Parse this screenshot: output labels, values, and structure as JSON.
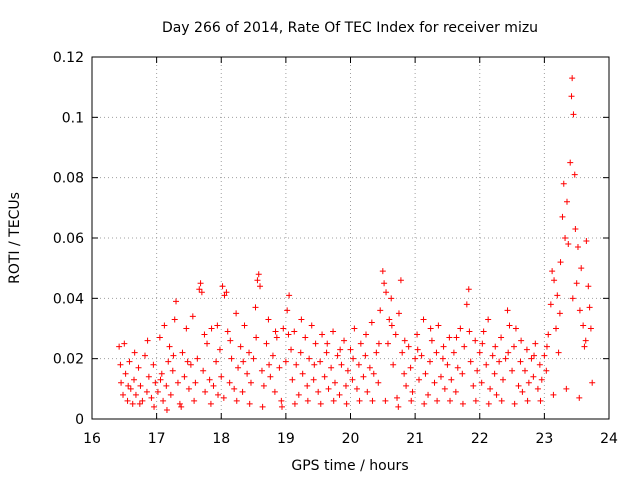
{
  "chart_data": {
    "type": "scatter",
    "title": "Day 266 of 2014, Rate Of TEC Index for receiver mizu",
    "xlabel": "GPS time / hours",
    "ylabel": "ROTI / TECUs",
    "xlim": [
      16,
      24
    ],
    "ylim": [
      0,
      0.12
    ],
    "x_ticks": [
      "16",
      "17",
      "18",
      "19",
      "20",
      "21",
      "22",
      "23",
      "24"
    ],
    "y_ticks": [
      "0",
      "0.02",
      "0.04",
      "0.06",
      "0.08",
      "0.1",
      "0.12"
    ],
    "grid": true,
    "marker": "plus",
    "color": "#ff0000",
    "series": [
      {
        "name": "ROTI",
        "points": [
          [
            16.42,
            0.024
          ],
          [
            16.45,
            0.012
          ],
          [
            16.48,
            0.008
          ],
          [
            16.5,
            0.025
          ],
          [
            16.52,
            0.015
          ],
          [
            16.55,
            0.006
          ],
          [
            16.58,
            0.019
          ],
          [
            16.6,
            0.01
          ],
          [
            16.63,
            0.005
          ],
          [
            16.65,
            0.013
          ],
          [
            16.68,
            0.008
          ],
          [
            16.72,
            0.017
          ],
          [
            16.75,
            0.011
          ],
          [
            16.78,
            0.006
          ],
          [
            16.82,
            0.021
          ],
          [
            16.85,
            0.009
          ],
          [
            16.88,
            0.014
          ],
          [
            16.92,
            0.007
          ],
          [
            16.95,
            0.018
          ],
          [
            16.98,
            0.012
          ],
          [
            17.02,
            0.009
          ],
          [
            17.05,
            0.027
          ],
          [
            17.08,
            0.015
          ],
          [
            17.1,
            0.006
          ],
          [
            17.12,
            0.031
          ],
          [
            17.15,
            0.011
          ],
          [
            17.18,
            0.019
          ],
          [
            17.2,
            0.024
          ],
          [
            17.22,
            0.008
          ],
          [
            17.25,
            0.016
          ],
          [
            17.28,
            0.033
          ],
          [
            17.3,
            0.039
          ],
          [
            17.33,
            0.012
          ],
          [
            17.36,
            0.005
          ],
          [
            17.4,
            0.022
          ],
          [
            17.43,
            0.014
          ],
          [
            17.46,
            0.03
          ],
          [
            17.5,
            0.01
          ],
          [
            17.53,
            0.018
          ],
          [
            17.56,
            0.034
          ],
          [
            17.6,
            0.012
          ],
          [
            17.63,
            0.02
          ],
          [
            17.66,
            0.043
          ],
          [
            17.68,
            0.045
          ],
          [
            17.7,
            0.042
          ],
          [
            17.72,
            0.016
          ],
          [
            17.75,
            0.009
          ],
          [
            17.78,
            0.025
          ],
          [
            17.82,
            0.013
          ],
          [
            17.85,
            0.03
          ],
          [
            17.88,
            0.011
          ],
          [
            17.92,
            0.019
          ],
          [
            17.95,
            0.008
          ],
          [
            17.98,
            0.023
          ],
          [
            18.0,
            0.014
          ],
          [
            18.02,
            0.044
          ],
          [
            18.05,
            0.041
          ],
          [
            18.08,
            0.042
          ],
          [
            18.1,
            0.029
          ],
          [
            18.13,
            0.012
          ],
          [
            18.16,
            0.02
          ],
          [
            18.2,
            0.01
          ],
          [
            18.23,
            0.035
          ],
          [
            18.26,
            0.017
          ],
          [
            18.3,
            0.024
          ],
          [
            18.33,
            0.009
          ],
          [
            18.36,
            0.031
          ],
          [
            18.4,
            0.015
          ],
          [
            18.43,
            0.022
          ],
          [
            18.46,
            0.012
          ],
          [
            18.5,
            0.02
          ],
          [
            18.53,
            0.037
          ],
          [
            18.56,
            0.046
          ],
          [
            18.58,
            0.048
          ],
          [
            18.6,
            0.044
          ],
          [
            18.63,
            0.016
          ],
          [
            18.66,
            0.011
          ],
          [
            18.7,
            0.025
          ],
          [
            18.73,
            0.033
          ],
          [
            18.76,
            0.014
          ],
          [
            18.8,
            0.021
          ],
          [
            18.83,
            0.009
          ],
          [
            18.86,
            0.027
          ],
          [
            18.9,
            0.017
          ],
          [
            18.93,
            0.006
          ],
          [
            18.96,
            0.03
          ],
          [
            19.0,
            0.019
          ],
          [
            19.02,
            0.036
          ],
          [
            19.05,
            0.041
          ],
          [
            19.08,
            0.023
          ],
          [
            19.1,
            0.013
          ],
          [
            19.13,
            0.029
          ],
          [
            19.16,
            0.018
          ],
          [
            19.2,
            0.008
          ],
          [
            19.23,
            0.022
          ],
          [
            19.26,
            0.015
          ],
          [
            19.3,
            0.027
          ],
          [
            19.33,
            0.011
          ],
          [
            19.36,
            0.02
          ],
          [
            19.4,
            0.031
          ],
          [
            19.43,
            0.013
          ],
          [
            19.46,
            0.025
          ],
          [
            19.5,
            0.009
          ],
          [
            19.53,
            0.019
          ],
          [
            19.56,
            0.028
          ],
          [
            19.6,
            0.014
          ],
          [
            19.63,
            0.022
          ],
          [
            19.66,
            0.01
          ],
          [
            19.7,
            0.017
          ],
          [
            19.73,
            0.029
          ],
          [
            19.76,
            0.012
          ],
          [
            19.8,
            0.021
          ],
          [
            19.83,
            0.008
          ],
          [
            19.86,
            0.018
          ],
          [
            19.9,
            0.026
          ],
          [
            19.93,
            0.011
          ],
          [
            19.96,
            0.016
          ],
          [
            20.0,
            0.023
          ],
          [
            20.03,
            0.013
          ],
          [
            20.06,
            0.03
          ],
          [
            20.1,
            0.01
          ],
          [
            20.13,
            0.018
          ],
          [
            20.16,
            0.025
          ],
          [
            20.2,
            0.014
          ],
          [
            20.23,
            0.021
          ],
          [
            20.26,
            0.009
          ],
          [
            20.3,
            0.017
          ],
          [
            20.33,
            0.032
          ],
          [
            20.36,
            0.015
          ],
          [
            20.4,
            0.022
          ],
          [
            20.43,
            0.012
          ],
          [
            20.46,
            0.036
          ],
          [
            20.5,
            0.049
          ],
          [
            20.52,
            0.045
          ],
          [
            20.55,
            0.042
          ],
          [
            20.58,
            0.025
          ],
          [
            20.6,
            0.033
          ],
          [
            20.63,
            0.04
          ],
          [
            20.66,
            0.018
          ],
          [
            20.7,
            0.028
          ],
          [
            20.72,
            0.007
          ],
          [
            20.75,
            0.035
          ],
          [
            20.78,
            0.046
          ],
          [
            20.8,
            0.022
          ],
          [
            20.83,
            0.015
          ],
          [
            20.86,
            0.011
          ],
          [
            20.9,
            0.024
          ],
          [
            20.93,
            0.017
          ],
          [
            20.96,
            0.009
          ],
          [
            21.0,
            0.02
          ],
          [
            21.03,
            0.028
          ],
          [
            21.06,
            0.013
          ],
          [
            21.1,
            0.021
          ],
          [
            21.13,
            0.033
          ],
          [
            21.16,
            0.015
          ],
          [
            21.2,
            0.008
          ],
          [
            21.23,
            0.019
          ],
          [
            21.26,
            0.026
          ],
          [
            21.3,
            0.012
          ],
          [
            21.33,
            0.022
          ],
          [
            21.36,
            0.031
          ],
          [
            21.4,
            0.014
          ],
          [
            21.43,
            0.02
          ],
          [
            21.46,
            0.01
          ],
          [
            21.5,
            0.018
          ],
          [
            21.53,
            0.027
          ],
          [
            21.56,
            0.013
          ],
          [
            21.6,
            0.022
          ],
          [
            21.63,
            0.009
          ],
          [
            21.66,
            0.017
          ],
          [
            21.7,
            0.03
          ],
          [
            21.73,
            0.015
          ],
          [
            21.76,
            0.024
          ],
          [
            21.8,
            0.038
          ],
          [
            21.83,
            0.043
          ],
          [
            21.86,
            0.019
          ],
          [
            21.9,
            0.011
          ],
          [
            21.93,
            0.026
          ],
          [
            21.96,
            0.016
          ],
          [
            22.0,
            0.022
          ],
          [
            22.03,
            0.012
          ],
          [
            22.06,
            0.029
          ],
          [
            22.1,
            0.018
          ],
          [
            22.13,
            0.033
          ],
          [
            22.16,
            0.01
          ],
          [
            22.2,
            0.021
          ],
          [
            22.23,
            0.015
          ],
          [
            22.26,
            0.008
          ],
          [
            22.3,
            0.019
          ],
          [
            22.33,
            0.027
          ],
          [
            22.36,
            0.013
          ],
          [
            22.4,
            0.02
          ],
          [
            22.43,
            0.036
          ],
          [
            22.46,
            0.031
          ],
          [
            22.5,
            0.016
          ],
          [
            22.53,
            0.024
          ],
          [
            22.56,
            0.03
          ],
          [
            22.6,
            0.011
          ],
          [
            22.63,
            0.019
          ],
          [
            22.66,
            0.009
          ],
          [
            22.7,
            0.016
          ],
          [
            22.73,
            0.023
          ],
          [
            22.76,
            0.012
          ],
          [
            22.8,
            0.02
          ],
          [
            22.83,
            0.014
          ],
          [
            22.86,
            0.025
          ],
          [
            22.9,
            0.01
          ],
          [
            22.93,
            0.018
          ],
          [
            22.96,
            0.013
          ],
          [
            23.0,
            0.021
          ],
          [
            23.03,
            0.016
          ],
          [
            23.06,
            0.028
          ],
          [
            23.1,
            0.038
          ],
          [
            23.12,
            0.049
          ],
          [
            23.15,
            0.046
          ],
          [
            23.18,
            0.03
          ],
          [
            23.2,
            0.041
          ],
          [
            23.22,
            0.022
          ],
          [
            23.25,
            0.052
          ],
          [
            23.28,
            0.067
          ],
          [
            23.3,
            0.078
          ],
          [
            23.32,
            0.06
          ],
          [
            23.35,
            0.072
          ],
          [
            23.37,
            0.058
          ],
          [
            23.4,
            0.085
          ],
          [
            23.42,
            0.107
          ],
          [
            23.43,
            0.113
          ],
          [
            23.45,
            0.101
          ],
          [
            23.47,
            0.081
          ],
          [
            23.48,
            0.063
          ],
          [
            23.5,
            0.045
          ],
          [
            23.52,
            0.057
          ],
          [
            23.55,
            0.036
          ],
          [
            23.57,
            0.05
          ],
          [
            23.6,
            0.031
          ],
          [
            23.62,
            0.024
          ],
          [
            23.65,
            0.059
          ],
          [
            23.68,
            0.044
          ],
          [
            23.7,
            0.037
          ],
          [
            23.72,
            0.03
          ],
          [
            16.44,
            0.018
          ],
          [
            16.56,
            0.011
          ],
          [
            16.66,
            0.022
          ],
          [
            16.74,
            0.005
          ],
          [
            16.86,
            0.026
          ],
          [
            16.96,
            0.004
          ],
          [
            17.06,
            0.013
          ],
          [
            17.16,
            0.003
          ],
          [
            17.26,
            0.021
          ],
          [
            17.38,
            0.004
          ],
          [
            17.48,
            0.019
          ],
          [
            17.58,
            0.006
          ],
          [
            17.74,
            0.028
          ],
          [
            17.84,
            0.005
          ],
          [
            17.94,
            0.031
          ],
          [
            18.04,
            0.007
          ],
          [
            18.14,
            0.026
          ],
          [
            18.24,
            0.006
          ],
          [
            18.34,
            0.019
          ],
          [
            18.44,
            0.005
          ],
          [
            18.54,
            0.027
          ],
          [
            18.64,
            0.004
          ],
          [
            18.74,
            0.018
          ],
          [
            18.84,
            0.029
          ],
          [
            18.94,
            0.004
          ],
          [
            19.04,
            0.028
          ],
          [
            19.14,
            0.005
          ],
          [
            19.24,
            0.033
          ],
          [
            19.34,
            0.006
          ],
          [
            19.44,
            0.018
          ],
          [
            19.54,
            0.005
          ],
          [
            19.64,
            0.025
          ],
          [
            19.74,
            0.006
          ],
          [
            19.84,
            0.023
          ],
          [
            19.94,
            0.005
          ],
          [
            20.04,
            0.02
          ],
          [
            20.14,
            0.006
          ],
          [
            20.24,
            0.028
          ],
          [
            20.34,
            0.006
          ],
          [
            20.44,
            0.025
          ],
          [
            20.54,
            0.006
          ],
          [
            20.64,
            0.031
          ],
          [
            20.74,
            0.004
          ],
          [
            20.84,
            0.026
          ],
          [
            20.94,
            0.006
          ],
          [
            21.04,
            0.023
          ],
          [
            21.14,
            0.005
          ],
          [
            21.24,
            0.03
          ],
          [
            21.34,
            0.006
          ],
          [
            21.44,
            0.024
          ],
          [
            21.54,
            0.006
          ],
          [
            21.64,
            0.027
          ],
          [
            21.74,
            0.005
          ],
          [
            21.84,
            0.029
          ],
          [
            21.94,
            0.006
          ],
          [
            22.04,
            0.025
          ],
          [
            22.14,
            0.005
          ],
          [
            22.24,
            0.024
          ],
          [
            22.34,
            0.006
          ],
          [
            22.44,
            0.022
          ],
          [
            22.54,
            0.005
          ],
          [
            22.64,
            0.026
          ],
          [
            22.74,
            0.006
          ],
          [
            22.84,
            0.021
          ],
          [
            22.94,
            0.006
          ],
          [
            23.04,
            0.024
          ],
          [
            23.14,
            0.008
          ],
          [
            23.24,
            0.035
          ],
          [
            23.34,
            0.01
          ],
          [
            23.44,
            0.04
          ],
          [
            23.54,
            0.007
          ],
          [
            23.64,
            0.026
          ],
          [
            23.74,
            0.012
          ]
        ]
      }
    ]
  }
}
